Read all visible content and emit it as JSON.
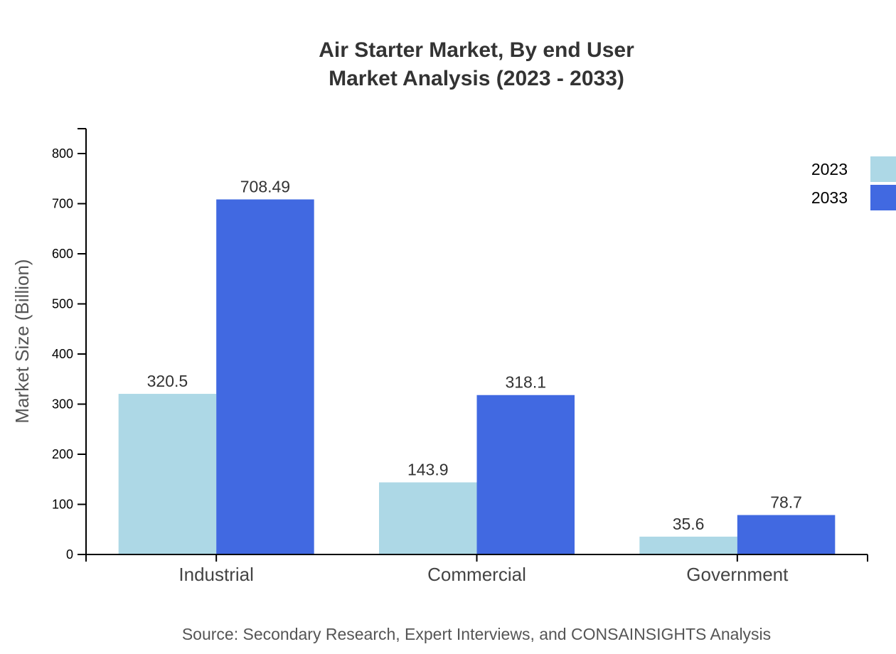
{
  "chart_data": {
    "type": "bar",
    "title": "Air Starter Market, By end User",
    "subtitle": "Market Analysis (2023 - 2033)",
    "xlabel": "",
    "ylabel": "Market Size (Billion)",
    "ylim": [
      0,
      850
    ],
    "yticks": [
      0,
      100,
      200,
      300,
      400,
      500,
      600,
      700,
      800
    ],
    "categories": [
      "Industrial",
      "Commercial",
      "Government"
    ],
    "series": [
      {
        "name": "2023",
        "color": "#ADD8E6",
        "values": [
          320.5,
          143.9,
          35.6
        ],
        "labels": [
          "320.5",
          "143.9",
          "35.6"
        ]
      },
      {
        "name": "2033",
        "color": "#4169E1",
        "values": [
          708.49,
          318.1,
          78.7
        ],
        "labels": [
          "708.49",
          "318.1",
          "78.7"
        ]
      }
    ],
    "grid": false,
    "legend": "top-right",
    "source": "Source: Secondary Research, Expert Interviews, and CONSAINSIGHTS Analysis"
  }
}
